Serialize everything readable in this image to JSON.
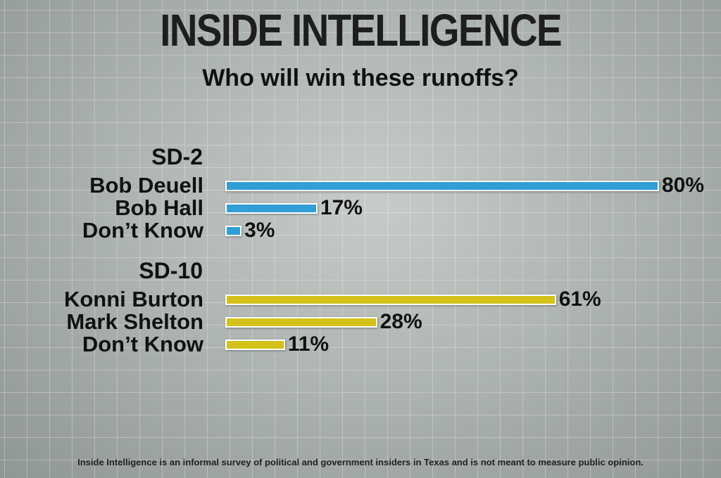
{
  "header": {
    "title": "INSIDE INTELLIGENCE",
    "subtitle": "Who will win these runoffs?"
  },
  "footnote": "Inside Intelligence is an informal survey of political and government insiders in Texas and is not meant to measure public opinion.",
  "chart_data": {
    "type": "bar",
    "orientation": "horizontal",
    "title": "Who will win these runoffs?",
    "xlim": [
      0,
      100
    ],
    "grid": false,
    "groups": [
      {
        "name": "SD-2",
        "color": "#2f9fd6",
        "categories": [
          "Bob Deuell",
          "Bob Hall",
          "Don’t Know"
        ],
        "values": [
          80,
          17,
          3
        ],
        "labels": [
          "80%",
          "17%",
          "3%"
        ]
      },
      {
        "name": "SD-10",
        "color": "#d4c21a",
        "categories": [
          "Konni Burton",
          "Mark Shelton",
          "Don’t Know"
        ],
        "values": [
          61,
          28,
          11
        ],
        "labels": [
          "61%",
          "28%",
          "11%"
        ]
      }
    ]
  }
}
